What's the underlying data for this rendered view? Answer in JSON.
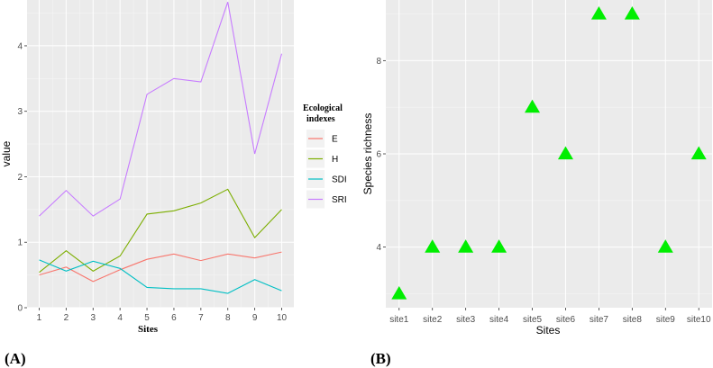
{
  "chart_data": [
    {
      "id": "A",
      "type": "line",
      "panel_label": "(A)",
      "xlabel": "Sites",
      "ylabel": "value",
      "x": [
        1,
        2,
        3,
        4,
        5,
        6,
        7,
        8,
        9,
        10
      ],
      "xlim": [
        0.55,
        10.45
      ],
      "ylim": [
        0,
        4.7
      ],
      "xticks": [
        1,
        2,
        3,
        4,
        5,
        6,
        7,
        8,
        9,
        10
      ],
      "yticks": [
        0,
        1,
        2,
        3,
        4
      ],
      "grid": true,
      "legend": {
        "title_line1": "Ecological",
        "title_line2": "indexes",
        "placement": "right"
      },
      "series": [
        {
          "name": "E",
          "color": "#F8766D",
          "values": [
            0.5,
            0.62,
            0.4,
            0.58,
            0.74,
            0.82,
            0.72,
            0.82,
            0.76,
            0.85
          ]
        },
        {
          "name": "H",
          "color": "#7CAE00",
          "values": [
            0.54,
            0.87,
            0.56,
            0.79,
            1.43,
            1.48,
            1.6,
            1.81,
            1.07,
            1.5
          ]
        },
        {
          "name": "SDI",
          "color": "#00BFC4",
          "values": [
            0.73,
            0.56,
            0.71,
            0.6,
            0.31,
            0.29,
            0.29,
            0.22,
            0.43,
            0.26
          ]
        },
        {
          "name": "SRI",
          "color": "#C77CFF",
          "values": [
            1.4,
            1.79,
            1.4,
            1.66,
            3.26,
            3.5,
            3.45,
            4.67,
            2.35,
            3.88
          ]
        }
      ]
    },
    {
      "id": "B",
      "type": "scatter",
      "panel_label": "(B)",
      "xlabel": "Sites",
      "ylabel": "Species richness",
      "categories": [
        "site1",
        "site2",
        "site3",
        "site4",
        "site5",
        "site6",
        "site7",
        "site8",
        "site9",
        "site10"
      ],
      "values": [
        3,
        4,
        4,
        4,
        7,
        6,
        9,
        9,
        4,
        6
      ],
      "ylim": [
        2.7,
        9.3
      ],
      "yticks": [
        4,
        6,
        8
      ],
      "marker": "triangle",
      "color": "#00EE00",
      "grid": true
    }
  ]
}
